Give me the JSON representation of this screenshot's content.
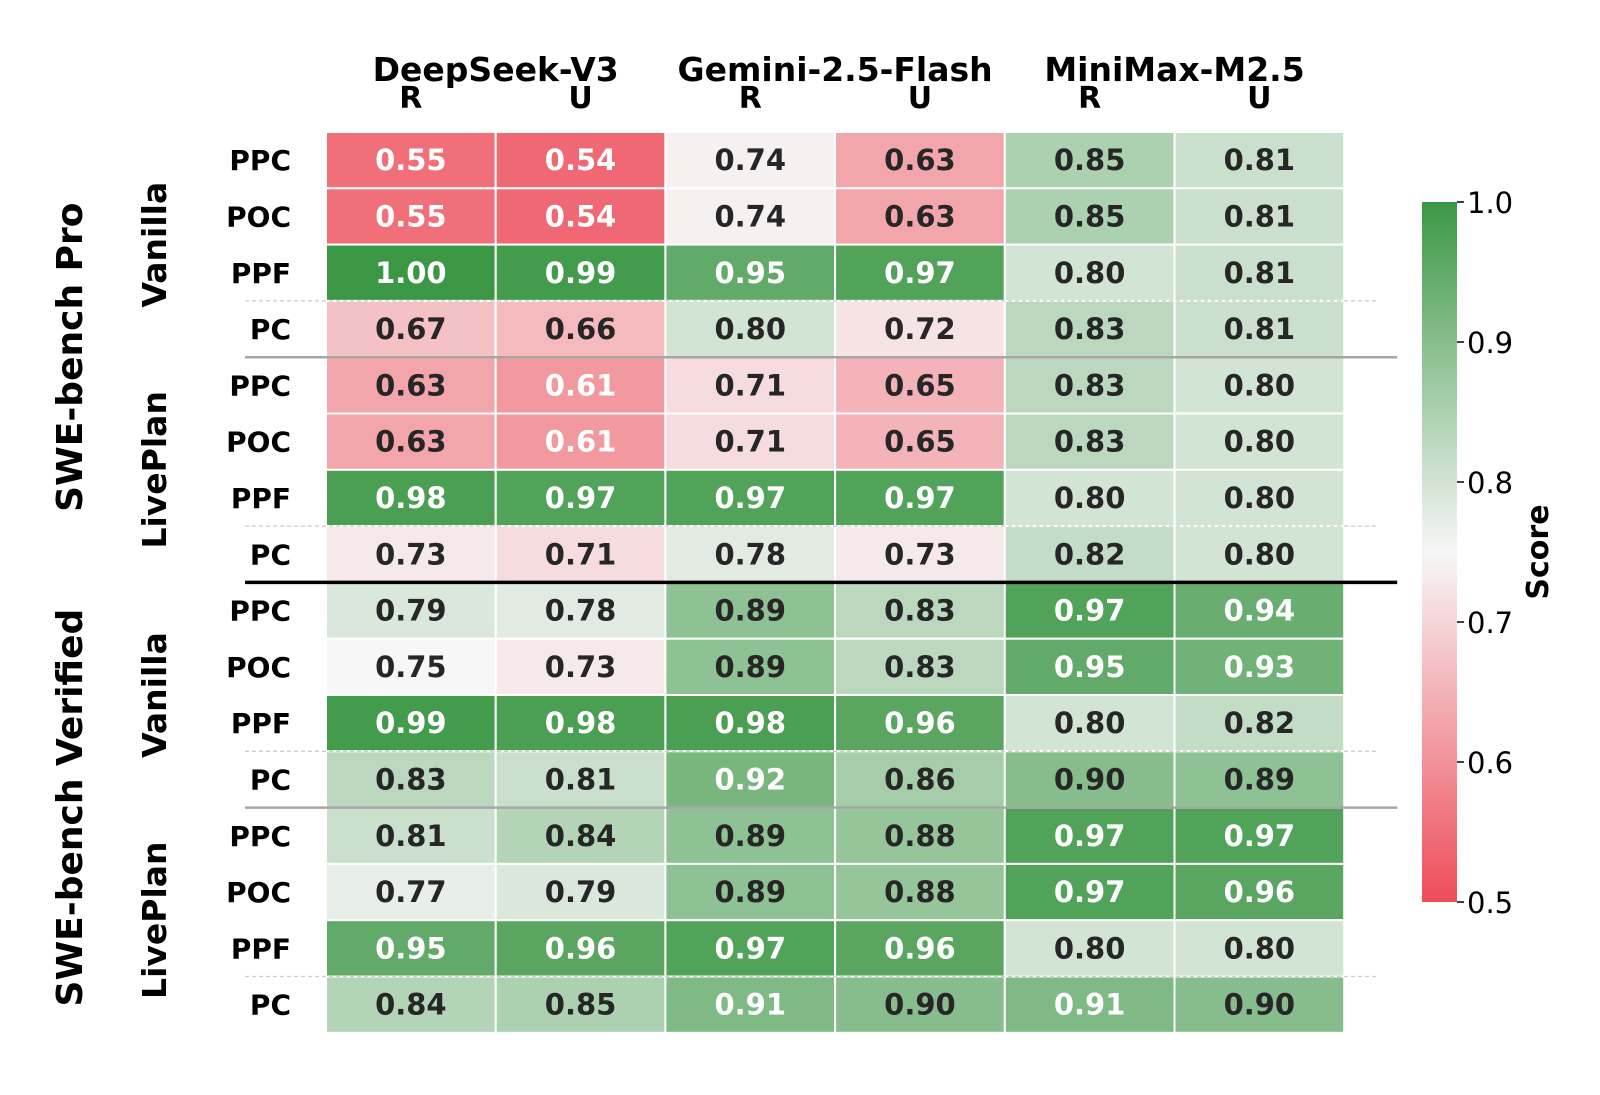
{
  "chart_data": {
    "type": "heatmap",
    "models": [
      "DeepSeek-V3",
      "Gemini-2.5-Flash",
      "MiniMax-M2.5"
    ],
    "columns": [
      "R",
      "U",
      "R",
      "U",
      "R",
      "U"
    ],
    "benchmarks": [
      "SWE-bench Pro",
      "SWE-bench Verified"
    ],
    "settings": [
      "Vanilla",
      "LivePlan"
    ],
    "metrics": [
      "PPC",
      "POC",
      "PPF",
      "PC"
    ],
    "rows": [
      {
        "benchmark": "SWE-bench Pro",
        "setting": "Vanilla",
        "metric": "PPC",
        "values": [
          0.55,
          0.54,
          0.74,
          0.63,
          0.85,
          0.81
        ]
      },
      {
        "benchmark": "SWE-bench Pro",
        "setting": "Vanilla",
        "metric": "POC",
        "values": [
          0.55,
          0.54,
          0.74,
          0.63,
          0.85,
          0.81
        ]
      },
      {
        "benchmark": "SWE-bench Pro",
        "setting": "Vanilla",
        "metric": "PPF",
        "values": [
          1.0,
          0.99,
          0.95,
          0.97,
          0.8,
          0.81
        ]
      },
      {
        "benchmark": "SWE-bench Pro",
        "setting": "Vanilla",
        "metric": "PC",
        "values": [
          0.67,
          0.66,
          0.8,
          0.72,
          0.83,
          0.81
        ]
      },
      {
        "benchmark": "SWE-bench Pro",
        "setting": "LivePlan",
        "metric": "PPC",
        "values": [
          0.63,
          0.61,
          0.71,
          0.65,
          0.83,
          0.8
        ]
      },
      {
        "benchmark": "SWE-bench Pro",
        "setting": "LivePlan",
        "metric": "POC",
        "values": [
          0.63,
          0.61,
          0.71,
          0.65,
          0.83,
          0.8
        ]
      },
      {
        "benchmark": "SWE-bench Pro",
        "setting": "LivePlan",
        "metric": "PPF",
        "values": [
          0.98,
          0.97,
          0.97,
          0.97,
          0.8,
          0.8
        ]
      },
      {
        "benchmark": "SWE-bench Pro",
        "setting": "LivePlan",
        "metric": "PC",
        "values": [
          0.73,
          0.71,
          0.78,
          0.73,
          0.82,
          0.8
        ]
      },
      {
        "benchmark": "SWE-bench Verified",
        "setting": "Vanilla",
        "metric": "PPC",
        "values": [
          0.79,
          0.78,
          0.89,
          0.83,
          0.97,
          0.94
        ]
      },
      {
        "benchmark": "SWE-bench Verified",
        "setting": "Vanilla",
        "metric": "POC",
        "values": [
          0.75,
          0.73,
          0.89,
          0.83,
          0.95,
          0.93
        ]
      },
      {
        "benchmark": "SWE-bench Verified",
        "setting": "Vanilla",
        "metric": "PPF",
        "values": [
          0.99,
          0.98,
          0.98,
          0.96,
          0.8,
          0.82
        ]
      },
      {
        "benchmark": "SWE-bench Verified",
        "setting": "Vanilla",
        "metric": "PC",
        "values": [
          0.83,
          0.81,
          0.92,
          0.86,
          0.9,
          0.89
        ]
      },
      {
        "benchmark": "SWE-bench Verified",
        "setting": "LivePlan",
        "metric": "PPC",
        "values": [
          0.81,
          0.84,
          0.89,
          0.88,
          0.97,
          0.97
        ]
      },
      {
        "benchmark": "SWE-bench Verified",
        "setting": "LivePlan",
        "metric": "POC",
        "values": [
          0.77,
          0.79,
          0.89,
          0.88,
          0.97,
          0.96
        ]
      },
      {
        "benchmark": "SWE-bench Verified",
        "setting": "LivePlan",
        "metric": "PPF",
        "values": [
          0.95,
          0.96,
          0.97,
          0.96,
          0.8,
          0.8
        ]
      },
      {
        "benchmark": "SWE-bench Verified",
        "setting": "LivePlan",
        "metric": "PC",
        "values": [
          0.84,
          0.85,
          0.91,
          0.9,
          0.91,
          0.9
        ]
      }
    ],
    "colorbar": {
      "label": "Score",
      "range": [
        0.5,
        1.0
      ],
      "ticks": [
        "0.5",
        "0.6",
        "0.7",
        "0.8",
        "0.9",
        "1.0"
      ],
      "colors": {
        "low": "#ee4d5a",
        "mid": "#f7f7f7",
        "high": "#3c9745"
      }
    },
    "grid": false,
    "legend": "right"
  }
}
